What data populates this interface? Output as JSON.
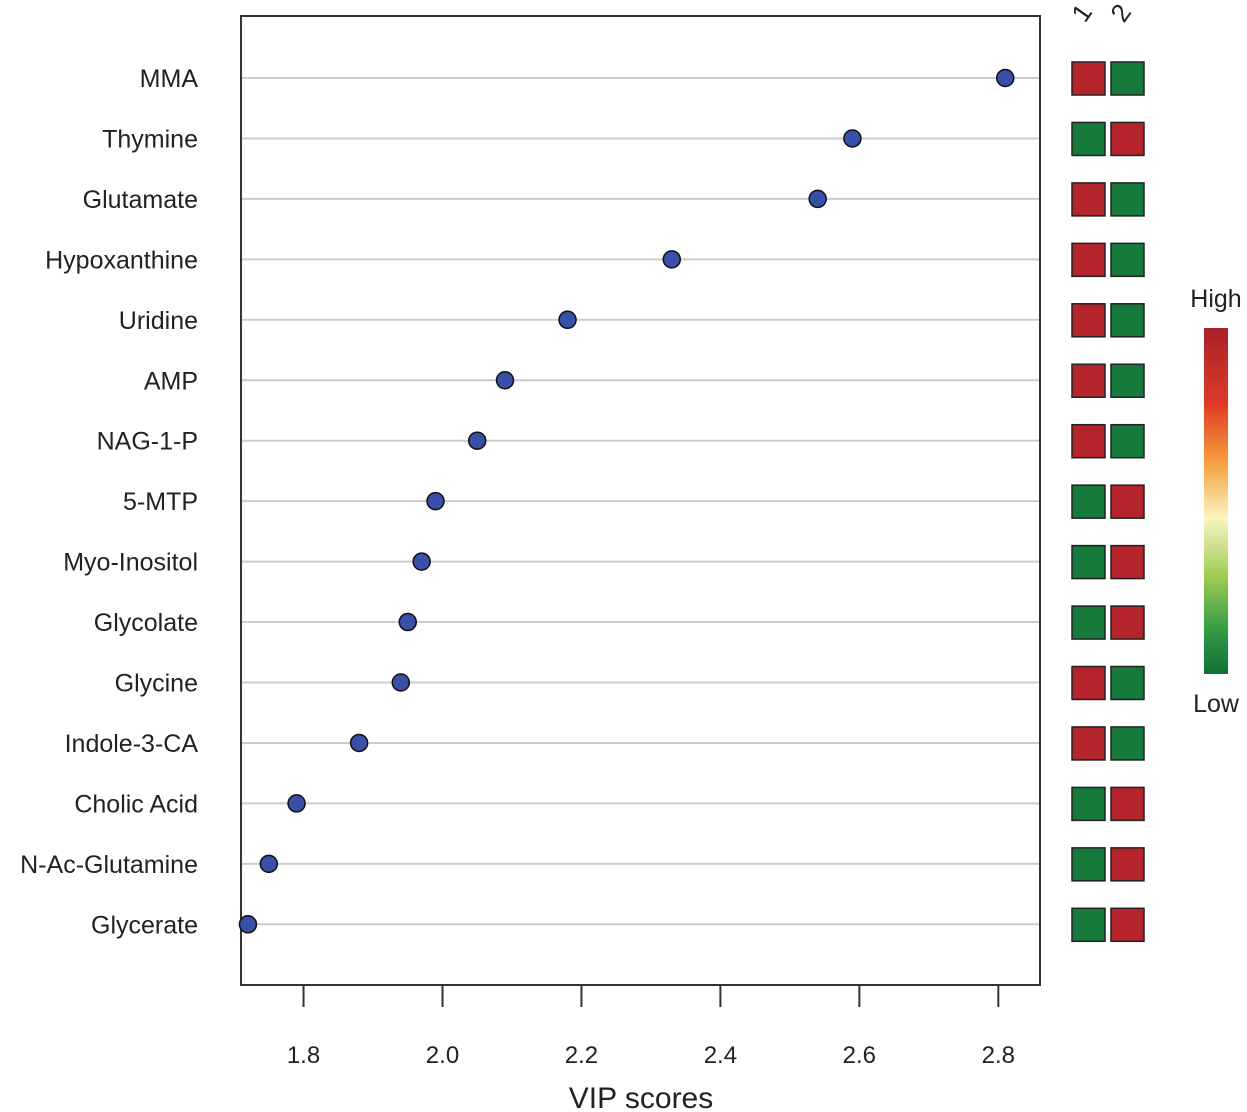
{
  "chart_data": {
    "type": "scatter",
    "xlabel": "VIP scores",
    "xticks": [
      1.8,
      2.0,
      2.2,
      2.4,
      2.6,
      2.8
    ],
    "xlim": [
      1.71,
      2.86
    ],
    "grid": true,
    "categories": [
      "MMA",
      "Thymine",
      "Glutamate",
      "Hypoxanthine",
      "Uridine",
      "AMP",
      "NAG-1-P",
      "5-MTP",
      "Myo-Inositol",
      "Glycolate",
      "Glycine",
      "Indole-3-CA",
      "Cholic Acid",
      "N-Ac-Glutamine",
      "Glycerate"
    ],
    "values": [
      2.81,
      2.59,
      2.54,
      2.33,
      2.18,
      2.09,
      2.05,
      1.99,
      1.97,
      1.95,
      1.94,
      1.88,
      1.79,
      1.75,
      1.72
    ],
    "heatmap": {
      "columns": [
        "1",
        "2"
      ],
      "levels": [
        [
          "high",
          "low"
        ],
        [
          "low",
          "high"
        ],
        [
          "high",
          "low"
        ],
        [
          "high",
          "low"
        ],
        [
          "high",
          "low"
        ],
        [
          "high",
          "low"
        ],
        [
          "high",
          "low"
        ],
        [
          "low",
          "high"
        ],
        [
          "low",
          "high"
        ],
        [
          "low",
          "high"
        ],
        [
          "high",
          "low"
        ],
        [
          "high",
          "low"
        ],
        [
          "low",
          "high"
        ],
        [
          "low",
          "high"
        ],
        [
          "low",
          "high"
        ]
      ]
    },
    "legend": {
      "high_label": "High",
      "low_label": "Low",
      "placement": "right"
    },
    "colors": {
      "point": "#3a4fa8",
      "high": "#b5232b",
      "low": "#157a3c",
      "grid": "#cccccc"
    }
  }
}
